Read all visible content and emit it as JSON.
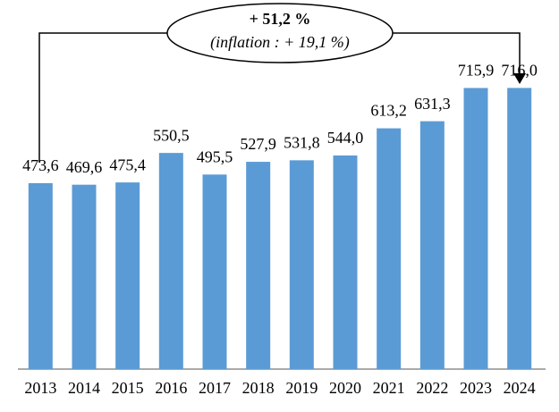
{
  "chart_data": {
    "type": "bar",
    "categories": [
      "2013",
      "2014",
      "2015",
      "2016",
      "2017",
      "2018",
      "2019",
      "2020",
      "2021",
      "2022",
      "2023",
      "2024"
    ],
    "values": [
      473.6,
      469.6,
      475.4,
      550.5,
      495.5,
      527.9,
      531.8,
      544.0,
      613.2,
      631.3,
      715.9,
      716.0
    ],
    "value_labels": [
      "473,6",
      "469,6",
      "475,4",
      "550,5",
      "495,5",
      "527,9",
      "531,8",
      "544,0",
      "613,2",
      "631,3",
      "715,9",
      "716,0"
    ],
    "color": "#5b9bd5",
    "ylim": [
      0,
      940
    ],
    "annotation": {
      "title": "+ 51,2 %",
      "subtitle": "(inflation : + 19,1 %)"
    }
  }
}
